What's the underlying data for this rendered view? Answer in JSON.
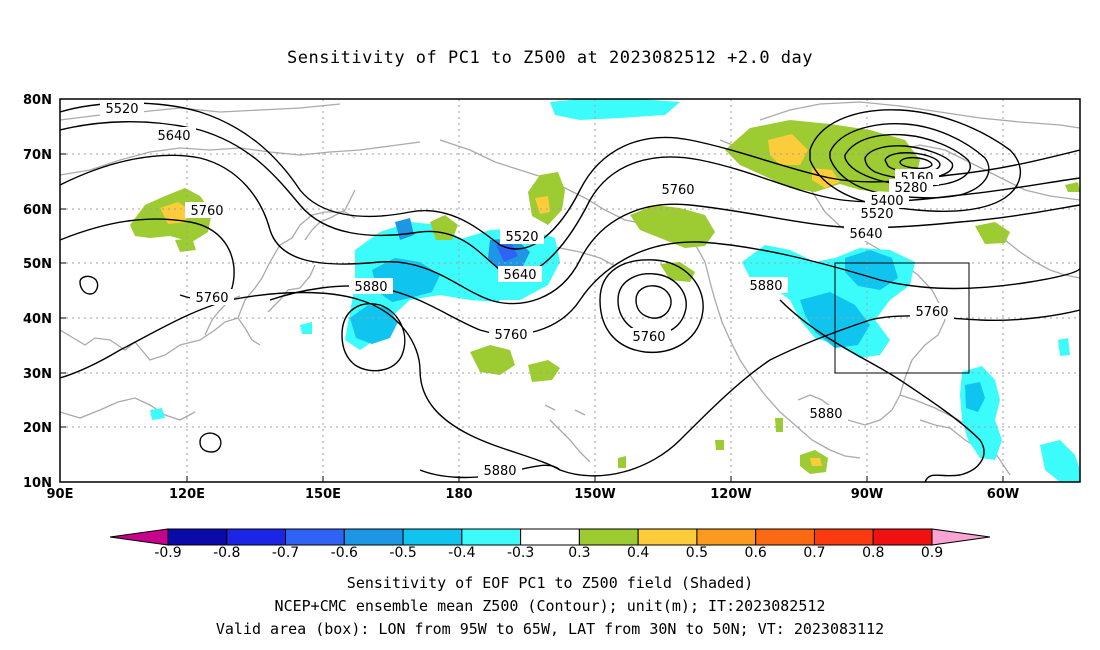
{
  "title": "Sensitivity of PC1 to Z500 at 2023082512 +2.0 day",
  "map": {
    "lon_labels": [
      "90E",
      "120E",
      "150E",
      "180",
      "150W",
      "120W",
      "90W",
      "60W"
    ],
    "lat_labels": [
      "80N",
      "70N",
      "60N",
      "50N",
      "40N",
      "30N",
      "20N",
      "10N"
    ],
    "contour_labels": [
      {
        "text": "5520",
        "id": "c5520a"
      },
      {
        "text": "5640",
        "id": "c5640a"
      },
      {
        "text": "5760",
        "id": "c5760a"
      },
      {
        "text": "5760",
        "id": "c5760b"
      },
      {
        "text": "5880",
        "id": "c5880a"
      },
      {
        "text": "5520",
        "id": "c5520b"
      },
      {
        "text": "5640",
        "id": "c5640b"
      },
      {
        "text": "5760",
        "id": "c5760c"
      },
      {
        "text": "5760",
        "id": "c5760d"
      },
      {
        "text": "5760",
        "id": "c5760e"
      },
      {
        "text": "5880",
        "id": "c5880b"
      },
      {
        "text": "5880",
        "id": "c5880c"
      },
      {
        "text": "5880",
        "id": "c5880d"
      },
      {
        "text": "5160",
        "id": "c5160"
      },
      {
        "text": "5280",
        "id": "c5280"
      },
      {
        "text": "5400",
        "id": "c5400"
      },
      {
        "text": "5520",
        "id": "c5520c"
      },
      {
        "text": "5640",
        "id": "c5640c"
      },
      {
        "text": "5760",
        "id": "c5760f"
      }
    ],
    "valid_box": {
      "lon_west": "95W",
      "lon_east": "65W",
      "lat_south": "30N",
      "lat_north": "50N"
    }
  },
  "colorbar": {
    "labels": [
      "-0.9",
      "-0.8",
      "-0.7",
      "-0.6",
      "-0.5",
      "-0.4",
      "-0.3",
      "0.3",
      "0.4",
      "0.5",
      "0.6",
      "0.7",
      "0.8",
      "0.9"
    ],
    "colors": [
      "#0a0aa8",
      "#1b25e6",
      "#2f63f5",
      "#1e96e6",
      "#10c4f0",
      "#3cfbfb",
      "#ffffff",
      "#9ccc32",
      "#fccc3a",
      "#fb9a1e",
      "#fb6a12",
      "#fb3a10",
      "#f01010"
    ],
    "left_tip_color": "#c8008c",
    "right_tip_color": "#f9a4d2"
  },
  "captions": {
    "line1": "Sensitivity of EOF PC1 to Z500 field (Shaded)",
    "line2": "NCEP+CMC ensemble mean Z500 (Contour); unit(m); IT:2023082512",
    "line3": "Valid area (box): LON from 95W to 65W, LAT from 30N to 50N; VT: 2023083112"
  }
}
